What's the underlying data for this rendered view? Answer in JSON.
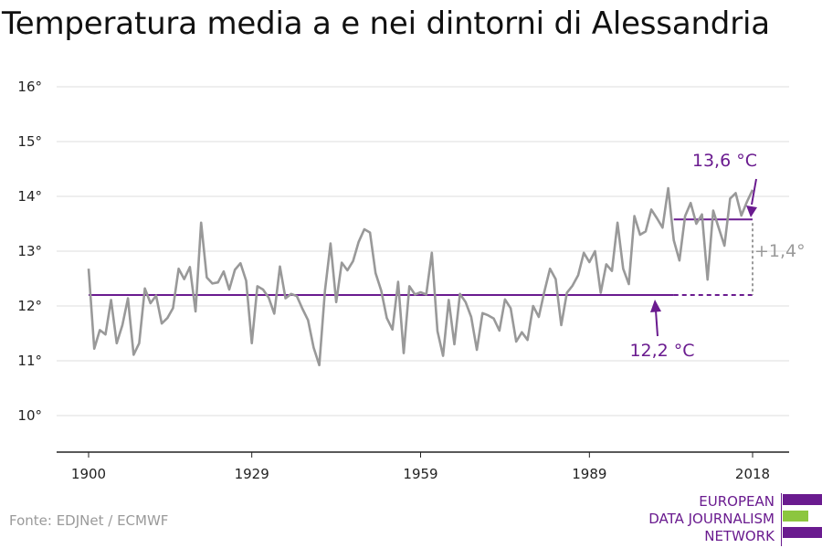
{
  "title": "Temperatura media a e nei dintorni di Alessandria",
  "source": "Fonte: EDJNet / ECMWF",
  "logo": {
    "lines": [
      "EUROPEAN",
      "DATA JOURNALISM",
      "NETWORK"
    ]
  },
  "colors": {
    "series": "#999999",
    "average": "#6a1b8f",
    "delta": "#9a9a9a",
    "logo_green": "#8cc63f"
  },
  "chart_data": {
    "type": "line",
    "title": "Temperatura media a e nei dintorni di Alessandria",
    "xlabel": "",
    "ylabel": "",
    "xlim": [
      1900,
      2018
    ],
    "ylim": [
      9.3,
      16.3
    ],
    "x_ticks": [
      1900,
      1929,
      1959,
      1989,
      2018
    ],
    "y_ticks": [
      10,
      11,
      12,
      13,
      14,
      15,
      16
    ],
    "y_tick_labels": [
      "10°",
      "11°",
      "12°",
      "13°",
      "14°",
      "15°",
      "16°"
    ],
    "grid": true,
    "series": [
      {
        "x_start": 1900,
        "values": [
          12.68,
          11.22,
          11.56,
          11.48,
          12.11,
          11.32,
          11.65,
          12.14,
          11.11,
          11.32,
          12.32,
          12.05,
          12.19,
          11.68,
          11.78,
          11.96,
          12.68,
          12.49,
          12.71,
          11.9,
          13.52,
          12.52,
          12.41,
          12.43,
          12.63,
          12.3,
          12.66,
          12.78,
          12.46,
          11.32,
          12.36,
          12.3,
          12.15,
          11.86,
          12.72,
          12.14,
          12.22,
          12.18,
          11.95,
          11.74,
          11.24,
          10.92,
          12.28,
          13.14,
          12.07,
          12.79,
          12.65,
          12.82,
          13.17,
          13.4,
          13.34,
          12.6,
          12.28,
          11.78,
          11.57,
          12.44,
          11.14,
          12.36,
          12.21,
          12.25,
          12.21,
          12.97,
          11.54,
          11.09,
          12.11,
          11.3,
          12.22,
          12.07,
          11.8,
          11.2,
          11.87,
          11.83,
          11.77,
          11.55,
          12.12,
          11.96,
          11.35,
          11.52,
          11.38,
          12.0,
          11.8,
          12.26,
          12.68,
          12.49,
          11.65,
          12.24,
          12.37,
          12.56,
          12.97,
          12.8,
          13.0,
          12.24,
          12.76,
          12.64,
          13.52,
          12.68,
          12.4,
          13.64,
          13.3,
          13.36,
          13.76,
          13.6,
          13.43,
          14.15,
          13.2,
          12.83,
          13.64,
          13.88,
          13.5,
          13.67,
          12.48,
          13.74,
          13.42,
          13.1,
          13.96,
          14.06,
          13.65,
          13.9,
          14.12
        ]
      }
    ],
    "reference_lines": [
      {
        "label": "12,2 °C",
        "value": 12.2,
        "x_from": 1900,
        "x_to": 2004,
        "extended_to": 2018
      },
      {
        "label": "13,6 °C",
        "value": 13.58,
        "x_from": 2004,
        "x_to": 2018
      }
    ],
    "delta_label": "+1,4°"
  }
}
